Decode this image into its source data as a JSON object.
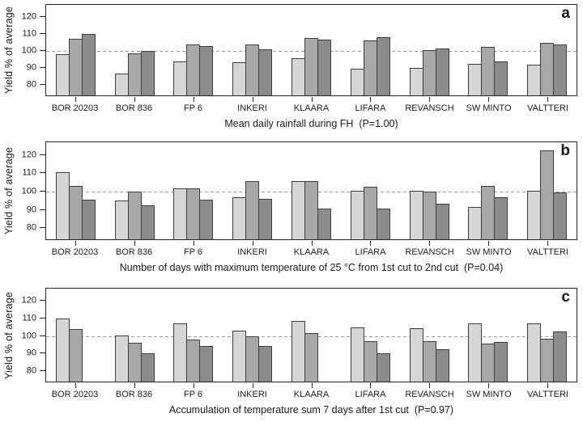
{
  "figure": {
    "background": "#ffffff",
    "bar_colors": [
      "#d6d6d6",
      "#a8a8a8",
      "#8c8c8c"
    ],
    "bar_border_color": "#3e3e3e",
    "frame_color": "#262626",
    "dashed_line_color": "#9c9c9c",
    "text_color": "#1a1a1a"
  },
  "chart_data": [
    {
      "type": "bar",
      "panel_label": "a",
      "title": "Mean daily rainfall during FH  (P=1.00)",
      "ylabel": "Yield % of average",
      "ylim": [
        74,
        127
      ],
      "yticks": [
        80,
        90,
        100,
        110,
        120
      ],
      "reference_line": 100,
      "grid": false,
      "legend": "none",
      "categories": [
        "BOR 20203",
        "BOR 836",
        "FP 6",
        "INKERI",
        "KLAARA",
        "LIFARA",
        "REVANSCH",
        "SW MINTO",
        "VALTTERI"
      ],
      "series": [
        {
          "name": "light-gray",
          "values": [
            98,
            87,
            94,
            93.5,
            96,
            89.5,
            90,
            92.5,
            92
          ]
        },
        {
          "name": "medium-gray",
          "values": [
            107,
            98.5,
            104,
            104,
            107.5,
            106,
            100.5,
            102.5,
            105
          ]
        },
        {
          "name": "dark-gray",
          "values": [
            110,
            100,
            103,
            101,
            106.5,
            108,
            101.5,
            94,
            104
          ]
        }
      ]
    },
    {
      "type": "bar",
      "panel_label": "b",
      "title": "Number of days with maximum temperature of 25 °C from 1st cut to 2nd cut  (P=0.04)",
      "ylabel": "Yield % of average",
      "ylim": [
        74,
        127
      ],
      "yticks": [
        80,
        90,
        100,
        110,
        120
      ],
      "reference_line": 100,
      "grid": false,
      "legend": "none",
      "categories": [
        "BOR 20203",
        "BOR 836",
        "FP 6",
        "INKERI",
        "KLAARA",
        "LIFARA",
        "REVANSCH",
        "SW MINTO",
        "VALTTERI"
      ],
      "series": [
        {
          "name": "light-gray",
          "values": [
            110.5,
            95,
            102,
            97,
            106,
            100.5,
            100.5,
            91.5,
            100.5
          ]
        },
        {
          "name": "medium-gray",
          "values": [
            103,
            100,
            102,
            106,
            106,
            102.5,
            100,
            103,
            122.5
          ]
        },
        {
          "name": "dark-gray",
          "values": [
            95.5,
            92.5,
            95.5,
            96,
            91,
            91,
            93.5,
            97,
            99.5
          ]
        }
      ]
    },
    {
      "type": "bar",
      "panel_label": "c",
      "title": "Accumulation of temperature sum 7 days after 1st cut  (P=0.97)",
      "ylabel": "Yield % of average",
      "ylim": [
        74,
        127
      ],
      "yticks": [
        80,
        90,
        100,
        110,
        120
      ],
      "reference_line": 100,
      "grid": false,
      "legend": "none",
      "categories": [
        "BOR 20203",
        "BOR 836",
        "FP 6",
        "INKERI",
        "KLAARA",
        "LIFARA",
        "REVANSCH",
        "SW MINTO",
        "VALTTERI"
      ],
      "series": [
        {
          "name": "light-gray",
          "values": [
            110,
            100.5,
            107,
            103,
            108.5,
            105,
            104.5,
            107,
            107
          ]
        },
        {
          "name": "medium-gray",
          "values": [
            104,
            96,
            98,
            100,
            101.5,
            97,
            97,
            95.5,
            98.5
          ]
        },
        {
          "name": "dark-gray",
          "values": [
            null,
            90,
            94.5,
            94.5,
            null,
            90,
            92.5,
            96.5,
            102.5
          ]
        }
      ]
    }
  ]
}
